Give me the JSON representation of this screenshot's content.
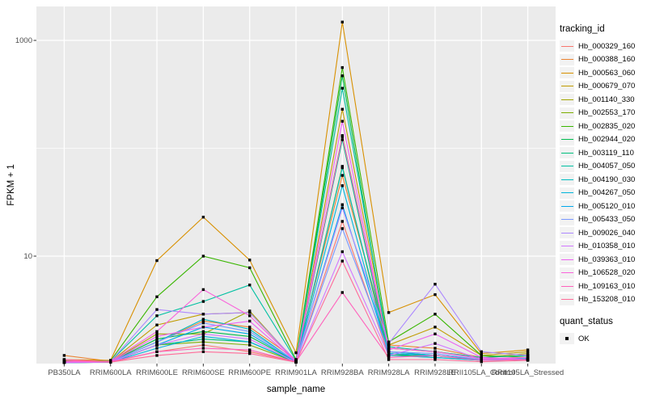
{
  "chart_data": {
    "type": "line",
    "title": "",
    "xlabel": "sample_name",
    "ylabel": "FPKM + 1",
    "yscale": "log10",
    "ylim": [
      1,
      2000
    ],
    "grid": true,
    "legend_position": "right",
    "legend_title": "tracking_id",
    "marker": {
      "shape": "square",
      "color": "#000000"
    },
    "yticks": [
      {
        "label": "10",
        "value": 10
      },
      {
        "label": "1000",
        "value": 1000
      }
    ],
    "y_minor_gridlines": [
      100
    ],
    "categories": [
      "PB350LA",
      "RRIM600LA",
      "RRIM600LE",
      "RRIM600SE",
      "RRIM600PE",
      "RRIM901LA",
      "RRIM928BA",
      "RRIM928LA",
      "RRIM928LE",
      "RRII105LA_Control",
      "RRII105LA_Stressed"
    ],
    "series": [
      {
        "name": "Hb_000329_160",
        "color": "#F8766D",
        "values": [
          1.05,
          1.04,
          1.3,
          1.5,
          1.3,
          1.05,
          21,
          1.2,
          1.15,
          1.1,
          1.1
        ]
      },
      {
        "name": "Hb_000388_160",
        "color": "#EA8331",
        "values": [
          1.2,
          1.06,
          1.6,
          2.5,
          2.2,
          1.1,
          56,
          1.5,
          1.4,
          1.15,
          1.2
        ]
      },
      {
        "name": "Hb_000563_060",
        "color": "#D89000",
        "values": [
          1.1,
          1.08,
          9.1,
          23,
          9.2,
          1.27,
          1480,
          3.0,
          4.4,
          1.25,
          1.35
        ]
      },
      {
        "name": "Hb_000679_070",
        "color": "#C09B00",
        "values": [
          1.05,
          1.05,
          2.3,
          2.9,
          3.0,
          1.06,
          230,
          1.5,
          2.2,
          1.2,
          1.3
        ]
      },
      {
        "name": "Hb_001140_330",
        "color": "#A3A500",
        "values": [
          1.05,
          1.05,
          1.9,
          1.9,
          3.1,
          1.05,
          131,
          1.4,
          1.3,
          1.15,
          1.25
        ]
      },
      {
        "name": "Hb_002553_170",
        "color": "#7CAE00",
        "values": [
          1.03,
          1.04,
          1.5,
          1.6,
          1.5,
          1.04,
          68,
          1.2,
          1.2,
          1.1,
          1.1
        ]
      },
      {
        "name": "Hb_002835_020",
        "color": "#39B600",
        "values": [
          1.06,
          1.07,
          4.2,
          10,
          7.8,
          1.1,
          560,
          1.6,
          2.9,
          1.2,
          1.15
        ]
      },
      {
        "name": "Hb_002944_020",
        "color": "#00BB4E",
        "values": [
          1.04,
          1.05,
          1.7,
          2.0,
          1.8,
          1.05,
          470,
          1.3,
          1.2,
          1.1,
          1.1
        ]
      },
      {
        "name": "Hb_003119_110",
        "color": "#00C07D",
        "values": [
          1.03,
          1.04,
          1.5,
          1.7,
          1.6,
          1.04,
          120,
          1.25,
          1.15,
          1.08,
          1.1
        ]
      },
      {
        "name": "Hb_004057_050",
        "color": "#00C0A2",
        "values": [
          1.05,
          1.06,
          2.8,
          3.8,
          5.4,
          1.08,
          360,
          1.45,
          1.3,
          1.15,
          1.2
        ]
      },
      {
        "name": "Hb_004190_030",
        "color": "#00BDC2",
        "values": [
          1.04,
          1.05,
          1.6,
          2.6,
          2.1,
          1.05,
          66,
          1.3,
          1.2,
          1.1,
          1.12
        ]
      },
      {
        "name": "Hb_004267_050",
        "color": "#00B5DB",
        "values": [
          1.03,
          1.04,
          1.4,
          1.8,
          1.6,
          1.04,
          45,
          1.2,
          1.15,
          1.08,
          1.1
        ]
      },
      {
        "name": "Hb_005120_010",
        "color": "#00A7EC",
        "values": [
          1.04,
          1.05,
          1.5,
          2.2,
          1.9,
          1.05,
          30,
          1.25,
          1.2,
          1.1,
          1.12
        ]
      },
      {
        "name": "Hb_005433_050",
        "color": "#7997FF",
        "values": [
          1.04,
          1.05,
          1.6,
          2.4,
          2.0,
          1.06,
          18,
          1.3,
          1.25,
          1.1,
          1.15
        ]
      },
      {
        "name": "Hb_009026_040",
        "color": "#AC88FF",
        "values": [
          1.05,
          1.06,
          3.2,
          2.9,
          3.0,
          1.07,
          28,
          1.55,
          5.5,
          1.3,
          1.2
        ]
      },
      {
        "name": "Hb_010358_010",
        "color": "#D277FF",
        "values": [
          1.03,
          1.04,
          1.5,
          1.9,
          1.7,
          1.04,
          11,
          1.2,
          1.55,
          1.1,
          1.1
        ]
      },
      {
        "name": "Hb_039363_010",
        "color": "#EC61F1",
        "values": [
          1.04,
          1.05,
          1.8,
          2.2,
          2.5,
          1.05,
          178,
          1.35,
          1.9,
          1.15,
          1.1
        ]
      },
      {
        "name": "Hb_106528_020",
        "color": "#FA62DB",
        "values": [
          1.05,
          1.06,
          2.0,
          4.9,
          2.8,
          1.06,
          128,
          1.4,
          1.3,
          1.12,
          1.15
        ]
      },
      {
        "name": "Hb_109163_010",
        "color": "#FF62BC",
        "values": [
          1.1,
          1.05,
          1.3,
          1.4,
          1.35,
          1.05,
          4.6,
          1.15,
          1.2,
          1.08,
          1.1
        ]
      },
      {
        "name": "Hb_153208_010",
        "color": "#FF6C99",
        "values": [
          1.08,
          1.04,
          1.2,
          1.3,
          1.25,
          1.04,
          9,
          1.1,
          1.1,
          1.05,
          1.08
        ]
      }
    ],
    "quant_legend": {
      "title": "quant_status",
      "items": [
        {
          "label": "OK"
        }
      ]
    }
  }
}
